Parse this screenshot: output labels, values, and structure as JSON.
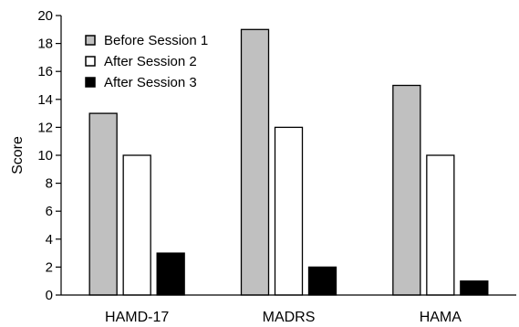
{
  "chart_data": {
    "type": "bar",
    "title": "",
    "xlabel": "",
    "ylabel": "Score",
    "ylim": [
      0,
      20
    ],
    "yticks": [
      0,
      2,
      4,
      6,
      8,
      10,
      12,
      14,
      16,
      18,
      20
    ],
    "grid": false,
    "legend_position": "top-left",
    "categories": [
      "HAMD-17",
      "MADRS",
      "HAMA"
    ],
    "series": [
      {
        "name": "Before Session 1",
        "values": [
          13,
          19,
          15
        ],
        "color": "#c0c0c0"
      },
      {
        "name": "After Session 2",
        "values": [
          10,
          12,
          10
        ],
        "color": "#ffffff"
      },
      {
        "name": "After Session 3",
        "values": [
          3,
          2,
          1
        ],
        "color": "#000000"
      }
    ]
  }
}
